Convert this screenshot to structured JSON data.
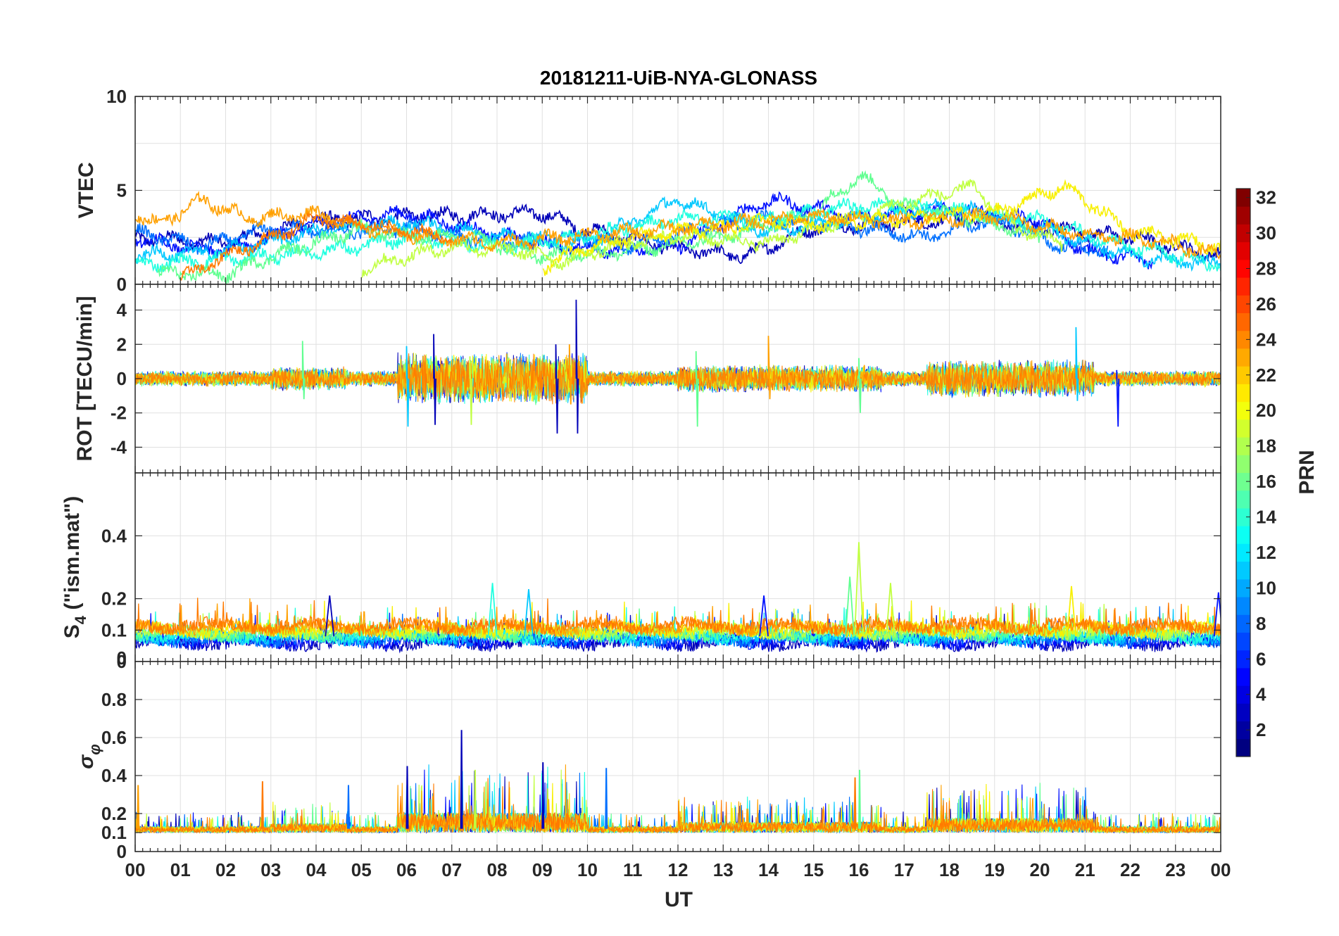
{
  "chart_data": {
    "type": "line",
    "title": "20181211-UiB-NYA-GLONASS",
    "xlabel": "UT",
    "x_range_hours": [
      0,
      24
    ],
    "x_ticks": [
      "00",
      "01",
      "02",
      "03",
      "04",
      "05",
      "06",
      "07",
      "08",
      "09",
      "10",
      "11",
      "12",
      "13",
      "14",
      "15",
      "16",
      "17",
      "18",
      "19",
      "20",
      "21",
      "22",
      "23",
      "00"
    ],
    "colorbar": {
      "label": "PRN",
      "range": [
        1,
        32
      ],
      "ticks": [
        "2",
        "4",
        "6",
        "8",
        "10",
        "12",
        "14",
        "16",
        "18",
        "20",
        "22",
        "24",
        "26",
        "28",
        "30",
        "32"
      ],
      "colormap": "jet"
    },
    "panels": [
      {
        "id": "vtec",
        "ylabel": "VTEC",
        "ylim": [
          0,
          10
        ],
        "y_ticks": [
          "0",
          "5",
          "10"
        ],
        "series": [
          {
            "prn": 2,
            "color": "#0000b8",
            "keyframes": [
              [
                0,
                2.5
              ],
              [
                2,
                2.2
              ],
              [
                4,
                3.4
              ],
              [
                6,
                3.6
              ],
              [
                9,
                3.8
              ],
              [
                9.8,
                3.0
              ],
              [
                12,
                1.9
              ],
              [
                13.5,
                1.5
              ],
              [
                15,
                3.0
              ],
              [
                17,
                3.3
              ],
              [
                18.5,
                3.5
              ],
              [
                20,
                3.0
              ],
              [
                22,
                2.5
              ],
              [
                24,
                1.5
              ]
            ]
          },
          {
            "prn": 4,
            "color": "#0010ff",
            "keyframes": [
              [
                0,
                2.4
              ],
              [
                2,
                1.8
              ],
              [
                4,
                3.2
              ],
              [
                6,
                3.8
              ],
              [
                8,
                2.6
              ],
              [
                10,
                1.8
              ],
              [
                12,
                2.0
              ],
              [
                14,
                4.5
              ],
              [
                16,
                3.6
              ],
              [
                18,
                4.0
              ],
              [
                20,
                3.4
              ],
              [
                21,
                1.8
              ],
              [
                22.5,
                1.2
              ]
            ]
          },
          {
            "prn": 7,
            "color": "#0070ff",
            "keyframes": [
              [
                0,
                2.8
              ],
              [
                1.5,
                2.0
              ],
              [
                3,
                3.0
              ],
              [
                5,
                2.8
              ],
              [
                6,
                3.0
              ],
              [
                8,
                2.2
              ],
              [
                10,
                2.5
              ],
              [
                11,
                2.0
              ],
              [
                12.5,
                3.0
              ],
              [
                14,
                3.5
              ],
              [
                16,
                3.0
              ],
              [
                17.5,
                2.5
              ],
              [
                19,
                3.5
              ],
              [
                20.5,
                2.0
              ],
              [
                21.5,
                1.8
              ]
            ]
          },
          {
            "prn": 11,
            "color": "#00c8ff",
            "keyframes": [
              [
                0,
                1.5
              ],
              [
                2,
                1.8
              ],
              [
                4,
                2.8
              ],
              [
                6,
                3.3
              ],
              [
                8,
                2.6
              ],
              [
                10,
                2.2
              ],
              [
                12,
                4.5
              ],
              [
                14,
                2.8
              ],
              [
                16,
                3.5
              ],
              [
                18,
                4.2
              ],
              [
                20,
                3.0
              ],
              [
                22,
                1.5
              ],
              [
                23,
                1.2
              ],
              [
                24,
                1.1
              ]
            ]
          },
          {
            "prn": 13,
            "color": "#20ffe0",
            "keyframes": [
              [
                0,
                1.0
              ],
              [
                1,
                1.2
              ],
              [
                3,
                1.5
              ],
              [
                5,
                2.0
              ],
              [
                6,
                2.5
              ],
              [
                8,
                2.0
              ],
              [
                10,
                2.6
              ],
              [
                12,
                3.5
              ],
              [
                14,
                3.5
              ],
              [
                16,
                4.2
              ],
              [
                18,
                4.0
              ],
              [
                20,
                3.4
              ],
              [
                22,
                2.0
              ],
              [
                24,
                1.0
              ]
            ]
          },
          {
            "prn": 15,
            "color": "#60ff90",
            "keyframes": [
              [
                0.5,
                0.6
              ],
              [
                2,
                0.5
              ],
              [
                3,
                1.5
              ],
              [
                5,
                3.0
              ],
              [
                6,
                2.6
              ],
              [
                7.5,
                2.4
              ],
              [
                9,
                1.5
              ],
              [
                11,
                1.8
              ],
              [
                13,
                2.5
              ],
              [
                15,
                3.8
              ],
              [
                16,
                5.8
              ],
              [
                17,
                4.2
              ],
              [
                18.5,
                3.5
              ],
              [
                20,
                2.6
              ]
            ]
          },
          {
            "prn": 18,
            "color": "#c0ff40",
            "keyframes": [
              [
                5,
                0.8
              ],
              [
                6,
                1.5
              ],
              [
                7,
                2.0
              ],
              [
                8.5,
                1.8
              ],
              [
                9.5,
                1.2
              ],
              [
                10.5,
                2.0
              ],
              [
                12,
                2.6
              ],
              [
                14,
                2.2
              ],
              [
                16,
                3.6
              ],
              [
                17.5,
                4.6
              ],
              [
                18.5,
                5.2
              ],
              [
                19.5,
                3.0
              ],
              [
                20.5,
                2.2
              ]
            ]
          },
          {
            "prn": 20,
            "color": "#f8f000",
            "keyframes": [
              [
                9,
                0.9
              ],
              [
                9.8,
                1.8
              ],
              [
                11,
                2.5
              ],
              [
                12,
                2.8
              ],
              [
                13,
                3.0
              ],
              [
                14,
                3.4
              ],
              [
                15,
                3.2
              ],
              [
                17,
                3.5
              ],
              [
                19,
                3.8
              ],
              [
                20.5,
                5.2
              ],
              [
                21,
                4.5
              ],
              [
                22,
                2.8
              ],
              [
                24,
                2.0
              ]
            ]
          },
          {
            "prn": 23,
            "color": "#ffa000",
            "keyframes": [
              [
                0,
                3.8
              ],
              [
                0.5,
                3.2
              ],
              [
                1.5,
                4.5
              ],
              [
                2.5,
                3.5
              ],
              [
                4,
                3.8
              ],
              [
                5,
                3.0
              ],
              [
                6,
                2.6
              ],
              [
                8,
                2.2
              ],
              [
                10,
                2.6
              ],
              [
                12,
                3.0
              ],
              [
                13.5,
                3.3
              ],
              [
                15,
                3.6
              ],
              [
                17,
                3.4
              ],
              [
                19,
                3.6
              ],
              [
                21,
                2.6
              ],
              [
                22.5,
                2.4
              ],
              [
                24,
                1.5
              ]
            ]
          },
          {
            "prn": 24,
            "color": "#ff7a00",
            "keyframes": [
              [
                1,
                0.3
              ],
              [
                2,
                1.5
              ],
              [
                3,
                2.5
              ],
              [
                4,
                3.5
              ],
              [
                5,
                3.2
              ],
              [
                6,
                2.8
              ],
              [
                7,
                2.5
              ]
            ]
          }
        ]
      },
      {
        "id": "rot",
        "ylabel": "ROT [TECU/min]",
        "ylim": [
          -5.5,
          5.5
        ],
        "y_ticks": [
          "-4",
          "-2",
          "0",
          "2",
          "4"
        ],
        "spikes": [
          {
            "x": 6.0,
            "min": -2.8,
            "max": 1.9,
            "color": "#00c8ff"
          },
          {
            "x": 6.6,
            "min": -2.7,
            "max": 2.6,
            "color": "#0000b8"
          },
          {
            "x": 7.4,
            "min": -2.7,
            "max": 1.3,
            "color": "#c0ff40"
          },
          {
            "x": 9.3,
            "min": -3.2,
            "max": 2.0,
            "color": "#0000b8"
          },
          {
            "x": 9.75,
            "min": -3.2,
            "max": 4.6,
            "color": "#0000b8"
          },
          {
            "x": 9.6,
            "min": -1.5,
            "max": 2.0,
            "color": "#ffa000"
          },
          {
            "x": 3.7,
            "min": -1.2,
            "max": 2.2,
            "color": "#60ff90"
          },
          {
            "x": 12.4,
            "min": -2.8,
            "max": 1.6,
            "color": "#60ff90"
          },
          {
            "x": 14.0,
            "min": -1.2,
            "max": 2.5,
            "color": "#ffa000"
          },
          {
            "x": 16.0,
            "min": -2.0,
            "max": 1.2,
            "color": "#60ff90"
          },
          {
            "x": 20.8,
            "min": -1.3,
            "max": 3.0,
            "color": "#00c8ff"
          },
          {
            "x": 21.7,
            "min": -2.8,
            "max": 0.5,
            "color": "#0010ff"
          }
        ]
      },
      {
        "id": "s4",
        "ylabel": "S4 (\"ism.mat\")",
        "ylabel_main": "S",
        "ylabel_sub": "4",
        "ylabel_rest": " (\"ism.mat\")",
        "ylim": [
          0,
          0.6
        ],
        "y_ticks": [
          "0",
          "0.1",
          "0.2",
          "0.4"
        ],
        "y_ticks_extra": [
          "0"
        ],
        "spikes": [
          {
            "x": 16.0,
            "max": 0.38,
            "color": "#c0ff40"
          },
          {
            "x": 7.9,
            "max": 0.25,
            "color": "#20ffe0"
          },
          {
            "x": 8.7,
            "max": 0.23,
            "color": "#00c8ff"
          },
          {
            "x": 16.7,
            "max": 0.25,
            "color": "#c0ff40"
          },
          {
            "x": 15.8,
            "max": 0.27,
            "color": "#60ff90"
          },
          {
            "x": 20.7,
            "max": 0.24,
            "color": "#f8f000"
          },
          {
            "x": 4.3,
            "max": 0.21,
            "color": "#0000b8"
          },
          {
            "x": 13.9,
            "max": 0.21,
            "color": "#0010ff"
          },
          {
            "x": 23.95,
            "max": 0.22,
            "color": "#0010ff"
          }
        ]
      },
      {
        "id": "sigma_phi",
        "ylabel": "σφ",
        "ylabel_main": "σ",
        "ylabel_sub": "φ",
        "ylim": [
          0,
          1.0
        ],
        "y_ticks": [
          "0",
          "0.1",
          "0.2",
          "0.4",
          "0.6",
          "0.8"
        ],
        "spikes": [
          {
            "x": 7.2,
            "max": 0.64,
            "color": "#0000b8"
          },
          {
            "x": 6.0,
            "max": 0.45,
            "color": "#0000b8"
          },
          {
            "x": 9.0,
            "max": 0.47,
            "color": "#0000b8"
          },
          {
            "x": 7.5,
            "max": 0.43,
            "color": "#c0ff40"
          },
          {
            "x": 16.0,
            "max": 0.43,
            "color": "#60ff90"
          },
          {
            "x": 10.4,
            "max": 0.44,
            "color": "#0070ff"
          },
          {
            "x": 15.9,
            "max": 0.39,
            "color": "#ff7a00"
          },
          {
            "x": 2.8,
            "max": 0.37,
            "color": "#ff7a00"
          },
          {
            "x": 4.7,
            "max": 0.35,
            "color": "#0070ff"
          },
          {
            "x": 0.05,
            "max": 0.35,
            "color": "#ffa000"
          }
        ]
      }
    ]
  }
}
